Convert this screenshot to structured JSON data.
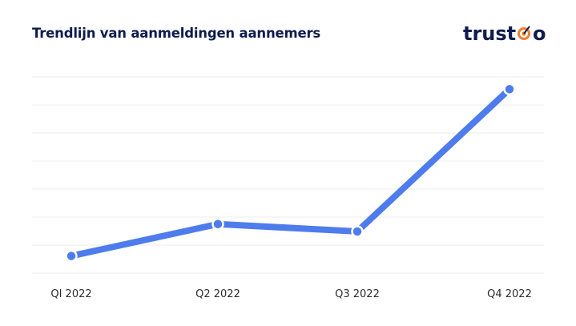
{
  "header": {
    "title": "Trendlijn van aanmeldingen aannemers"
  },
  "logo": {
    "text_before": "trust",
    "text_after": "o",
    "text_color": "#0f1c4d",
    "target_icon": "target-icon",
    "target_colors": [
      "#f07f32",
      "#ffffff"
    ]
  },
  "chart_data": {
    "type": "line",
    "title": "Trendlijn van aanmeldingen aannemers",
    "categories": [
      "QI 2022",
      "Q2 2022",
      "Q3 2022",
      "Q4 2022"
    ],
    "series": [
      {
        "values": [
          7,
          20,
          17,
          75
        ]
      }
    ],
    "xlabel": "",
    "ylabel": "",
    "ylim": [
      0,
      80
    ],
    "y_ticks_shown": false,
    "grid": true,
    "legend": "none",
    "line_color": "#4f7cec",
    "marker_fill": "#4f7cec",
    "marker_stroke": "#ffffff",
    "grid_color": "#eeeeee",
    "tick_label_color": "#2b2b2b"
  }
}
